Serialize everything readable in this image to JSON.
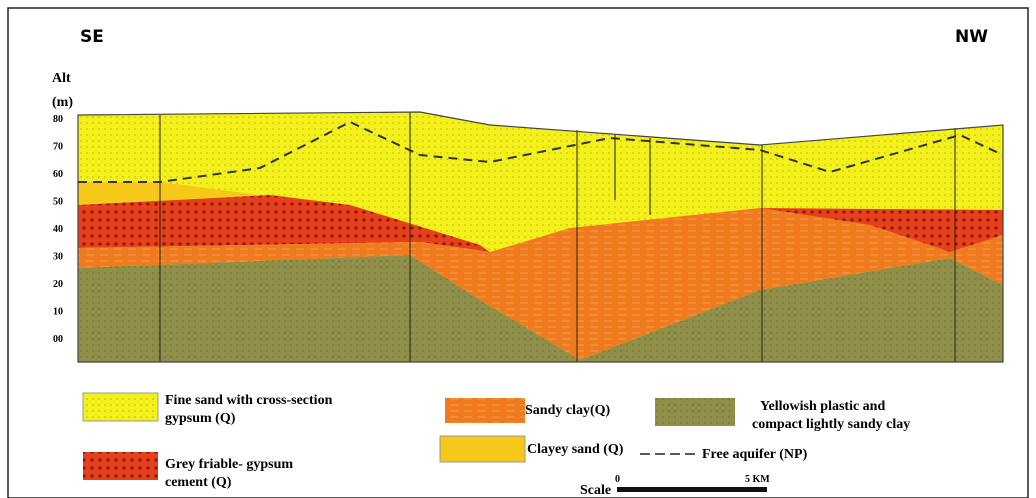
{
  "header": {
    "left": "SE",
    "right": "NW"
  },
  "axis": {
    "title": "Alt",
    "unit": "(m)",
    "ticks": [
      "80",
      "70",
      "60",
      "50",
      "40",
      "30",
      "20",
      "10",
      "00"
    ]
  },
  "legend": {
    "fine_sand": [
      "Fine sand with cross-section",
      "gypsum (Q)"
    ],
    "grey_friable": [
      "Grey friable- gypsum",
      "cement (Q)"
    ],
    "sandy_clay": [
      "Sandy clay(Q)"
    ],
    "yellowish_clay": [
      "Yellowish plastic and",
      "compact lightly sandy clay"
    ],
    "clayey_sand": [
      "Clayey sand (Q)"
    ],
    "aquifer": [
      "Free aquifer (NP)"
    ]
  },
  "scale": {
    "label": "Scale",
    "start": "0",
    "end": "5 KM"
  }
}
